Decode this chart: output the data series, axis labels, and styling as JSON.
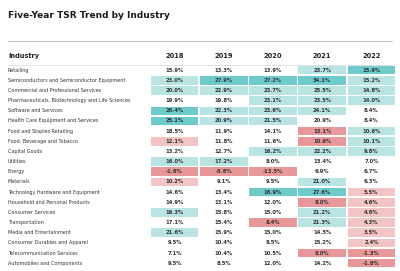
{
  "title": "Five-Year TSR Trend by Industry",
  "columns": [
    "Industry",
    "2018",
    "2019",
    "2020",
    "2021",
    "2022"
  ],
  "industries": [
    "Retailing",
    "Semiconductors and Semiconductor Equipment",
    "Commercial and Professional Services",
    "Pharmaceuticals, Biotechnology and Life Sciences",
    "Software and Services",
    "Health Care Equipment and Services",
    "Food and Staples Retailing",
    "Food, Beverage and Tobacco",
    "Capital Goods",
    "Utilities",
    "Energy",
    "Materials",
    "Technology Hardware and Equipment",
    "Household and Personal Products",
    "Consumer Services",
    "Transportation",
    "Media and Entertainment",
    "Consumer Durables and Apparel",
    "Telecommunication Services",
    "Automobiles and Components"
  ],
  "values": [
    [
      15.9,
      13.3,
      13.9,
      23.7,
      15.9
    ],
    [
      23.0,
      27.9,
      27.2,
      34.1,
      15.2
    ],
    [
      20.0,
      22.9,
      23.7,
      25.5,
      14.8
    ],
    [
      19.9,
      19.8,
      23.1,
      23.5,
      14.0
    ],
    [
      26.4,
      22.3,
      23.6,
      24.1,
      8.4
    ],
    [
      25.1,
      20.9,
      21.5,
      20.9,
      8.4
    ],
    [
      18.5,
      11.9,
      14.1,
      13.1,
      10.6
    ],
    [
      12.1,
      11.8,
      11.6,
      10.9,
      10.1
    ],
    [
      13.2,
      12.7,
      16.2,
      22.2,
      9.8
    ],
    [
      16.0,
      17.2,
      8.0,
      13.4,
      7.0
    ],
    [
      -1.6,
      -5.8,
      -13.5,
      6.9,
      6.7
    ],
    [
      10.2,
      9.1,
      9.5,
      21.0,
      6.3
    ],
    [
      14.6,
      13.4,
      16.9,
      27.6,
      5.5
    ],
    [
      14.9,
      13.1,
      12.0,
      8.0,
      4.6
    ],
    [
      19.3,
      15.8,
      15.0,
      21.2,
      4.6
    ],
    [
      17.1,
      15.4,
      8.4,
      21.3,
      4.3
    ],
    [
      21.6,
      15.9,
      15.0,
      14.5,
      3.5
    ],
    [
      9.5,
      10.4,
      8.5,
      15.2,
      2.4
    ],
    [
      7.1,
      10.4,
      10.5,
      8.0,
      -1.3
    ],
    [
      9.5,
      8.5,
      12.0,
      14.2,
      -1.8
    ]
  ],
  "cell_colors": [
    [
      "W",
      "W",
      "W",
      "TL",
      "TS"
    ],
    [
      "TL",
      "TS",
      "TS",
      "TS",
      "TL"
    ],
    [
      "TL",
      "TL",
      "TL",
      "TL",
      "TL"
    ],
    [
      "W",
      "W",
      "TL",
      "TL",
      "TL"
    ],
    [
      "TS",
      "TL",
      "TL",
      "TL",
      "W"
    ],
    [
      "TS",
      "TL",
      "TL",
      "W",
      "W"
    ],
    [
      "W",
      "W",
      "W",
      "PS",
      "TL"
    ],
    [
      "PL",
      "W",
      "W",
      "PS",
      "TL"
    ],
    [
      "W",
      "W",
      "TL",
      "TL",
      "TL"
    ],
    [
      "TL",
      "TL",
      "W",
      "W",
      "W"
    ],
    [
      "PS",
      "PS",
      "PS",
      "W",
      "W"
    ],
    [
      "PL",
      "W",
      "W",
      "TL",
      "W"
    ],
    [
      "W",
      "W",
      "TS",
      "TS",
      "PL"
    ],
    [
      "W",
      "W",
      "W",
      "PS",
      "PL"
    ],
    [
      "TL",
      "W",
      "W",
      "TL",
      "PL"
    ],
    [
      "W",
      "W",
      "PS",
      "TL",
      "PL"
    ],
    [
      "TL",
      "W",
      "W",
      "W",
      "PL"
    ],
    [
      "W",
      "W",
      "W",
      "W",
      "PL"
    ],
    [
      "W",
      "W",
      "W",
      "PS",
      "PS"
    ],
    [
      "W",
      "W",
      "W",
      "W",
      "PS"
    ]
  ],
  "color_map": {
    "TS": "#6dcbcc",
    "TL": "#b8e4e4",
    "PS": "#e89898",
    "PL": "#f2c4c4",
    "W": "#ffffff"
  },
  "bg_color": "#ffffff",
  "title_fontsize": 6.5,
  "header_fontsize": 4.8,
  "cell_fontsize": 3.8,
  "industry_fontsize": 3.5
}
